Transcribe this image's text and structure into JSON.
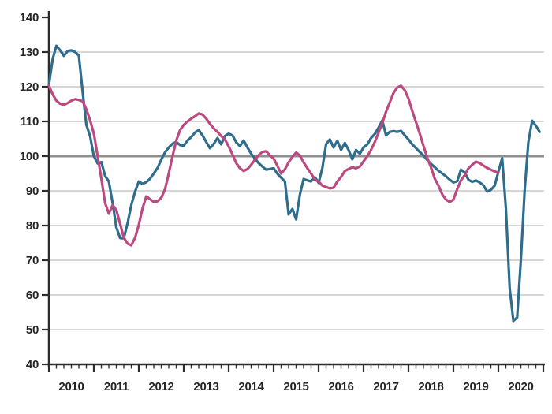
{
  "chart_data": {
    "type": "line",
    "title": "",
    "xlabel": "",
    "ylabel": "",
    "grid": true,
    "legend": "none",
    "ylim": [
      40,
      140
    ],
    "y_ticks": [
      40,
      50,
      60,
      70,
      80,
      90,
      100,
      110,
      120,
      130,
      140
    ],
    "x_year_labels": [
      "2010",
      "2011",
      "2012",
      "2013",
      "2014",
      "2015",
      "2016",
      "2017",
      "2018",
      "2019",
      "2020"
    ],
    "x_range_years": [
      2010,
      2021
    ],
    "reference_line_value": 100,
    "minor_ticks_per_year": 5,
    "colors": {
      "teal_series": "#2f6d8c",
      "pink_series": "#bc4a80",
      "grid_light": "#c9c9c9",
      "reference_line": "#8f8f8f",
      "axis": "#2b2b2b",
      "label": "#242424",
      "background": "#ffffff"
    },
    "series": [
      {
        "name": "teal-index",
        "color": "#2f6d8c",
        "start": "2010-01",
        "values": [
          120.5,
          128.0,
          131.8,
          130.5,
          128.9,
          130.3,
          130.5,
          130.0,
          129.0,
          118.5,
          109.0,
          105.7,
          100.0,
          97.9,
          98.3,
          94.3,
          92.7,
          86.5,
          79.5,
          76.4,
          76.3,
          80.7,
          85.9,
          89.8,
          92.7,
          92.0,
          92.5,
          93.5,
          95.0,
          96.6,
          99.0,
          101.1,
          102.5,
          103.6,
          104.1,
          103.2,
          103.0,
          104.5,
          105.5,
          106.8,
          107.5,
          106.0,
          104.1,
          102.3,
          103.5,
          105.2,
          103.4,
          105.8,
          106.5,
          106.0,
          104.0,
          102.9,
          104.5,
          102.5,
          100.7,
          99.3,
          98.0,
          97.0,
          96.1,
          96.3,
          96.5,
          94.9,
          93.8,
          92.7,
          83.2,
          84.8,
          81.8,
          88.9,
          93.4,
          93.0,
          92.7,
          93.9,
          92.3,
          96.6,
          103.4,
          104.8,
          102.5,
          104.4,
          101.8,
          103.8,
          101.8,
          99.1,
          101.8,
          100.7,
          102.5,
          103.4,
          105.2,
          106.4,
          108.2,
          110.3,
          106.0,
          107.0,
          107.2,
          107.0,
          107.3,
          106.0,
          104.8,
          103.4,
          102.3,
          101.2,
          100.2,
          98.9,
          97.8,
          96.8,
          95.8,
          95.0,
          94.2,
          93.2,
          92.4,
          92.8,
          96.1,
          95.3,
          93.2,
          92.6,
          93.0,
          92.4,
          91.6,
          89.8,
          90.3,
          91.5,
          95.5,
          99.4,
          85.0,
          62.0,
          52.5,
          53.5,
          70.0,
          90.0,
          104.0,
          110.2,
          108.8,
          107.0
        ]
      },
      {
        "name": "pink-index",
        "color": "#bc4a80",
        "start": "2010-01",
        "values": [
          120.3,
          117.8,
          116.0,
          115.1,
          114.8,
          115.3,
          116.0,
          116.4,
          116.2,
          115.8,
          113.5,
          110.3,
          106.5,
          100.0,
          93.5,
          86.5,
          83.4,
          85.9,
          84.5,
          80.5,
          76.5,
          74.8,
          74.3,
          76.5,
          80.2,
          85.0,
          88.4,
          87.6,
          86.8,
          87.0,
          88.0,
          90.5,
          95.0,
          100.0,
          104.5,
          107.5,
          109.0,
          110.0,
          110.8,
          111.5,
          112.3,
          112.0,
          110.8,
          109.3,
          108.0,
          107.0,
          105.8,
          104.8,
          102.8,
          100.5,
          98.0,
          96.5,
          95.7,
          96.3,
          97.5,
          99.0,
          100.3,
          101.2,
          101.4,
          100.2,
          99.3,
          97.2,
          95.0,
          96.2,
          98.2,
          99.8,
          101.0,
          100.2,
          98.2,
          96.5,
          95.0,
          93.2,
          92.7,
          91.5,
          91.1,
          90.7,
          90.9,
          92.7,
          94.0,
          95.7,
          96.3,
          96.8,
          96.5,
          97.0,
          98.5,
          100.0,
          101.8,
          104.1,
          106.8,
          109.5,
          112.8,
          115.5,
          118.2,
          119.8,
          120.3,
          119.0,
          116.6,
          113.0,
          109.8,
          106.5,
          103.0,
          99.5,
          96.8,
          93.5,
          91.5,
          89.0,
          87.5,
          86.8,
          87.5,
          90.5,
          93.0,
          94.5,
          96.5,
          97.5,
          98.4,
          98.0,
          97.3,
          96.6,
          96.1,
          95.6,
          95.2
        ]
      }
    ]
  }
}
